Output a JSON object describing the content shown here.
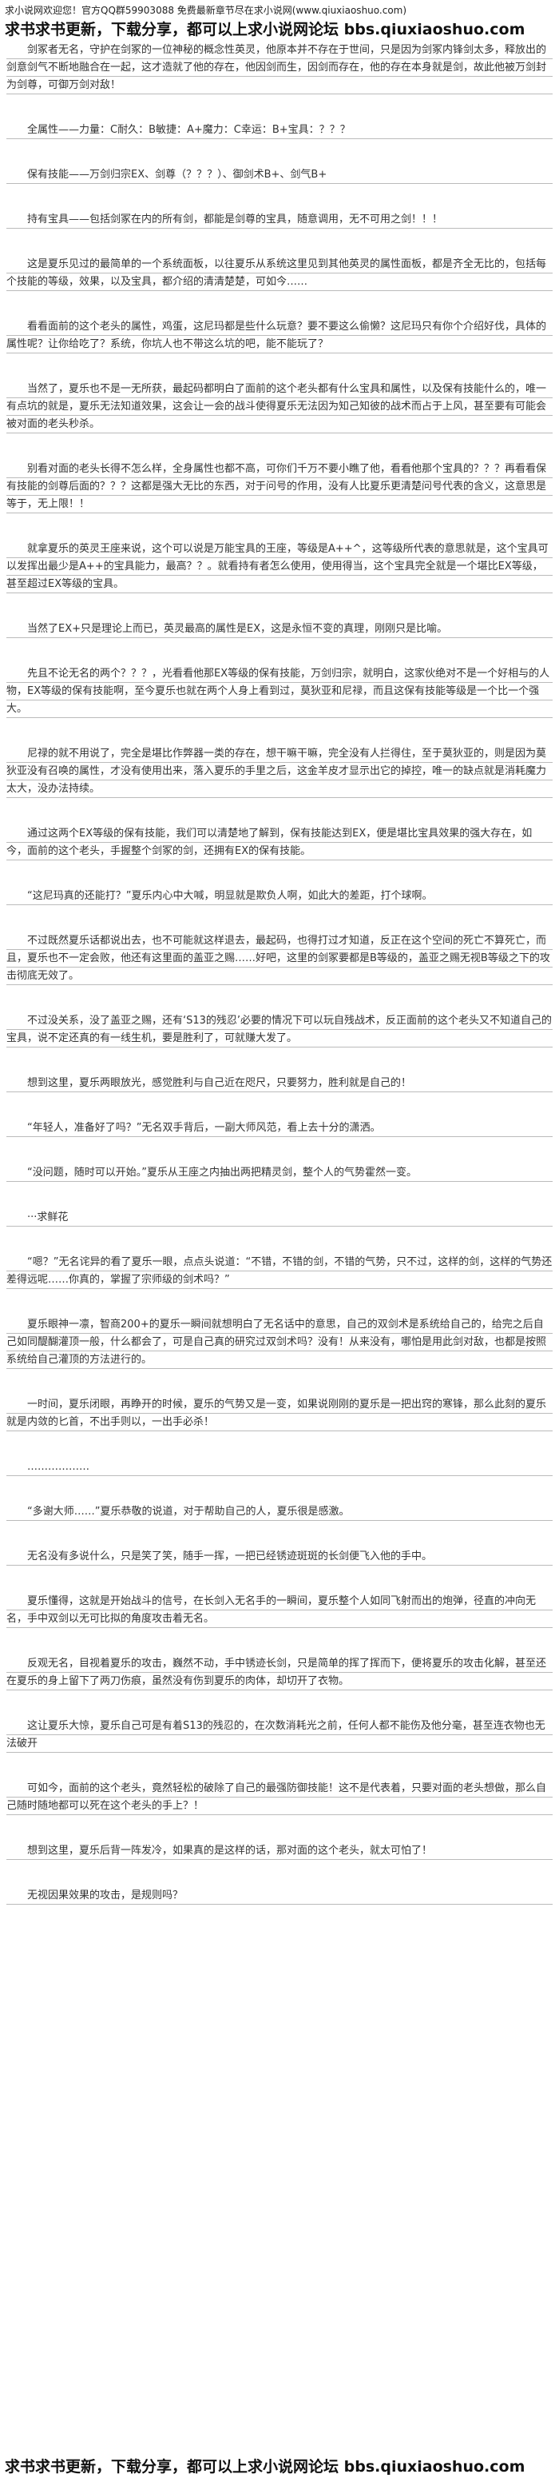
{
  "header": {
    "notice": "求小说网欢迎您！官方QQ群59903088 免费最新章节尽在求小说网(www.qiuxiaoshuo.com)",
    "banner": "求书求书更新，下载分享，都可以上求小说网论坛 bbs.qiuxiaoshuo.com"
  },
  "paragraphs": [
    "剑冢者无名，守护在剑冢的一位神秘的概念性英灵，他原本并不存在于世间，只是因为剑冢内锋剑太多，释放出的剑意剑气不断地融合在一起，这才造就了他的存在，他因剑而生，因剑而存在，他的存在本身就是剑，故此他被万剑封为剑尊，可御万剑对敌！",
    "全属性——力量：C耐久：B敏捷：A+魔力：C幸运：B+宝具：？？？",
    "保有技能——万剑归宗EX、剑尊（？？？）、御剑术B+、剑气B+",
    "持有宝具——包括剑冢在内的所有剑，都能是剑尊的宝具，随意调用，无不可用之剑！！！",
    "这是夏乐见过的最简单的一个系统面板，以往夏乐从系统这里见到其他英灵的属性面板，都是齐全无比的，包括每个技能的等级，效果，以及宝具，都介绍的清清楚楚，可如今……",
    "看看面前的这个老头的属性，鸡蛋，这尼玛都是些什么玩意？要不要这么偷懒？这尼玛只有你个介绍好伐，具体的属性呢？让你给吃了？系统，你坑人也不带这么坑的吧，能不能玩了？",
    "当然了，夏乐也不是一无所获，最起码都明白了面前的这个老头都有什么宝具和属性，以及保有技能什么的，唯一有点坑的就是，夏乐无法知道效果，这会让一会的战斗使得夏乐无法因为知己知彼的战术而占于上风，甚至要有可能会被对面的老头秒杀。",
    "别看对面的老头长得不怎么样，全身属性也都不高，可你们千万不要小瞧了他，看看他那个宝具的？？？再看看保有技能的剑尊后面的？？？这都是强大无比的东西，对于问号的作用，没有人比夏乐更清楚问号代表的含义，这意思是等于，无上限！！",
    "就拿夏乐的英灵王座来说，这个可以说是万能宝具的王座，等级是A++^，这等级所代表的意思就是，这个宝具可以发挥出最少是A++的宝具能力，最高？？。就看持有者怎么使用，使用得当，这个宝具完全就是一个堪比EX等级，甚至超过EX等级的宝具。",
    "当然了EX+只是理论上而已，英灵最高的属性是EX，这是永恒不变的真理，刚刚只是比喻。",
    "先且不论无名的两个？？？，光看看他那EX等级的保有技能，万剑归宗，就明白，这家伙绝对不是一个好相与的人物，EX等级的保有技能啊，至今夏乐也就在两个人身上看到过，莫狄亚和尼禄，而且这保有技能等级是一个比一个强大。",
    "尼禄的就不用说了，完全是堪比作弊器一类的存在，想干嘛干嘛，完全没有人拦得住，至于莫狄亚的，则是因为莫狄亚没有召唤的属性，才没有使用出来，落入夏乐的手里之后，这金羊皮才显示出它的掉控，唯一的缺点就是消耗魔力太大，没办法持续。",
    "通过这两个EX等级的保有技能，我们可以清楚地了解到，保有技能达到EX，便是堪比宝具效果的强大存在，如今，面前的这个老头，手握整个剑冢的剑，还拥有EX的保有技能。",
    "“这尼玛真的还能打？”夏乐内心中大喊，明显就是欺负人啊，如此大的差距，打个球啊。",
    "不过既然夏乐话都说出去，也不可能就这样退去，最起码，也得打过才知道，反正在这个空间的死亡不算死亡，而且，夏乐也不一定会败，他还有这里面的盖亚之赐……好吧，这里的剑冢要都是B等级的，盖亚之赐无视B等级之下的攻击彻底无效了。",
    "不过没关系，没了盖亚之赐，还有‘S13的残忍’必要的情况下可以玩自残战术，反正面前的这个老头又不知道自己的宝具，说不定还真的有一线生机，要是胜利了，可就赚大发了。",
    "想到这里，夏乐两眼放光，感觉胜利与自己近在咫尺，只要努力，胜利就是自己的！",
    "“年轻人，准备好了吗？”无名双手背后，一副大师风范，看上去十分的潇洒。",
    "“没问题，随时可以开始。”夏乐从王座之内抽出两把精灵剑，整个人的气势霍然一变。",
    "···求鲜花",
    "“嗯？”无名诧异的看了夏乐一眼，点点头说道：“不错，不错的剑，不错的气势，只不过，这样的剑，这样的气势还差得远呢……你真的，掌握了宗师级的剑术吗？”",
    "夏乐眼神一凛，智商200+的夏乐一瞬间就想明白了无名话中的意思，自己的双剑术是系统给自己的，给完之后自己如同醍醐灌顶一般，什么都会了，可是自己真的研究过双剑术吗？没有！从来没有，哪怕是用此剑对敌，也都是按照系统给自己灌顶的方法进行的。",
    "一时间，夏乐闭眼，再睁开的时候，夏乐的气势又是一变，如果说刚刚的夏乐是一把出窍的寒锋，那么此刻的夏乐就是内敛的匕首，不出手则以，一出手必杀！",
    "………………",
    "“多谢大师……”夏乐恭敬的说道，对于帮助自己的人，夏乐很是感激。",
    "无名没有多说什么，只是笑了笑，随手一挥，一把已经锈迹斑斑的长剑便飞入他的手中。",
    "夏乐懂得，这就是开始战斗的信号，在长剑入无名手的一瞬间，夏乐整个人如同飞射而出的炮弹，径直的冲向无名，手中双剑以无可比拟的角度攻击着无名。",
    "反观无名，目视着夏乐的攻击，巍然不动，手中锈迹长剑，只是简单的挥了挥而下，便将夏乐的攻击化解，甚至还在夏乐的身上留下了两刀伤痕，虽然没有伤到夏乐的肉体，却切开了衣物。",
    "这让夏乐大惊，夏乐自己可是有着S13的残忍的，在次数消耗光之前，任何人都不能伤及他分毫，甚至连衣物也无法破开",
    "可如今，面前的这个老头，竟然轻松的破除了自己的最强防御技能！这不是代表着，只要对面的老头想做，那么自己随时随地都可以死在这个老头的手上？！",
    "想到这里，夏乐后背一阵发冷，如果真的是这样的话，那对面的这个老头，就太可怕了！",
    "无视因果效果的攻击，是规则吗？"
  ],
  "footer": {
    "banner": "求书求书更新，下载分享，都可以上求小说网论坛 bbs.qiuxiaoshuo.com"
  }
}
